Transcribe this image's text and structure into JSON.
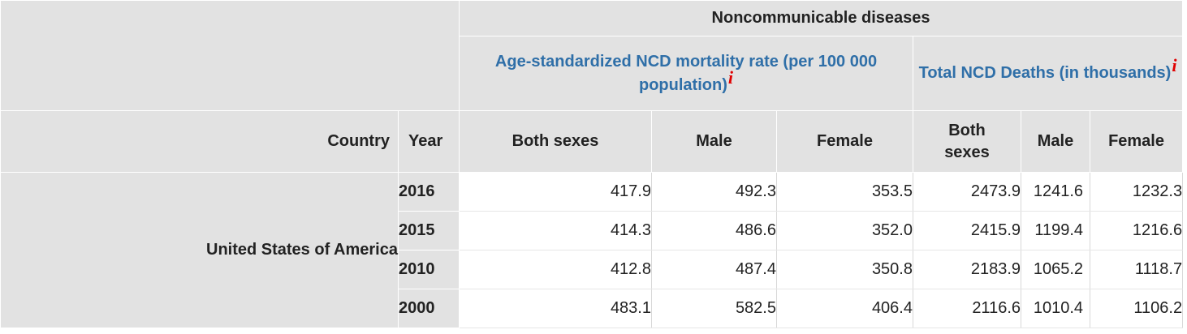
{
  "table": {
    "group_header": "Noncommunicable diseases",
    "subgroups": [
      {
        "label": "Age-standardized NCD mortality rate (per 100 000 population)",
        "info": "i"
      },
      {
        "label": "Total NCD Deaths (in thousands)",
        "info": "i"
      }
    ],
    "columns": {
      "country": "Country",
      "year": "Year",
      "rate_both": "Both sexes",
      "rate_male": "Male",
      "rate_female": "Female",
      "deaths_both": "Both sexes",
      "deaths_male": "Male",
      "deaths_female": "Female"
    },
    "country": "United States of America",
    "rows": [
      {
        "year": "2016",
        "rate_both": "417.9",
        "rate_male": "492.3",
        "rate_female": "353.5",
        "deaths_both": "2473.9",
        "deaths_male": "1241.6",
        "deaths_female": "1232.3"
      },
      {
        "year": "2015",
        "rate_both": "414.3",
        "rate_male": "486.6",
        "rate_female": "352.0",
        "deaths_both": "2415.9",
        "deaths_male": "1199.4",
        "deaths_female": "1216.6"
      },
      {
        "year": "2010",
        "rate_both": "412.8",
        "rate_male": "487.4",
        "rate_female": "350.8",
        "deaths_both": "2183.9",
        "deaths_male": "1065.2",
        "deaths_female": "1118.7"
      },
      {
        "year": "2000",
        "rate_both": "483.1",
        "rate_male": "582.5",
        "rate_female": "406.4",
        "deaths_both": "2116.6",
        "deaths_male": "1010.4",
        "deaths_female": "1106.2"
      }
    ]
  },
  "colors": {
    "header_bg": "#e2e2e2",
    "link_blue": "#2f6fa8",
    "info_red": "#e00000"
  }
}
